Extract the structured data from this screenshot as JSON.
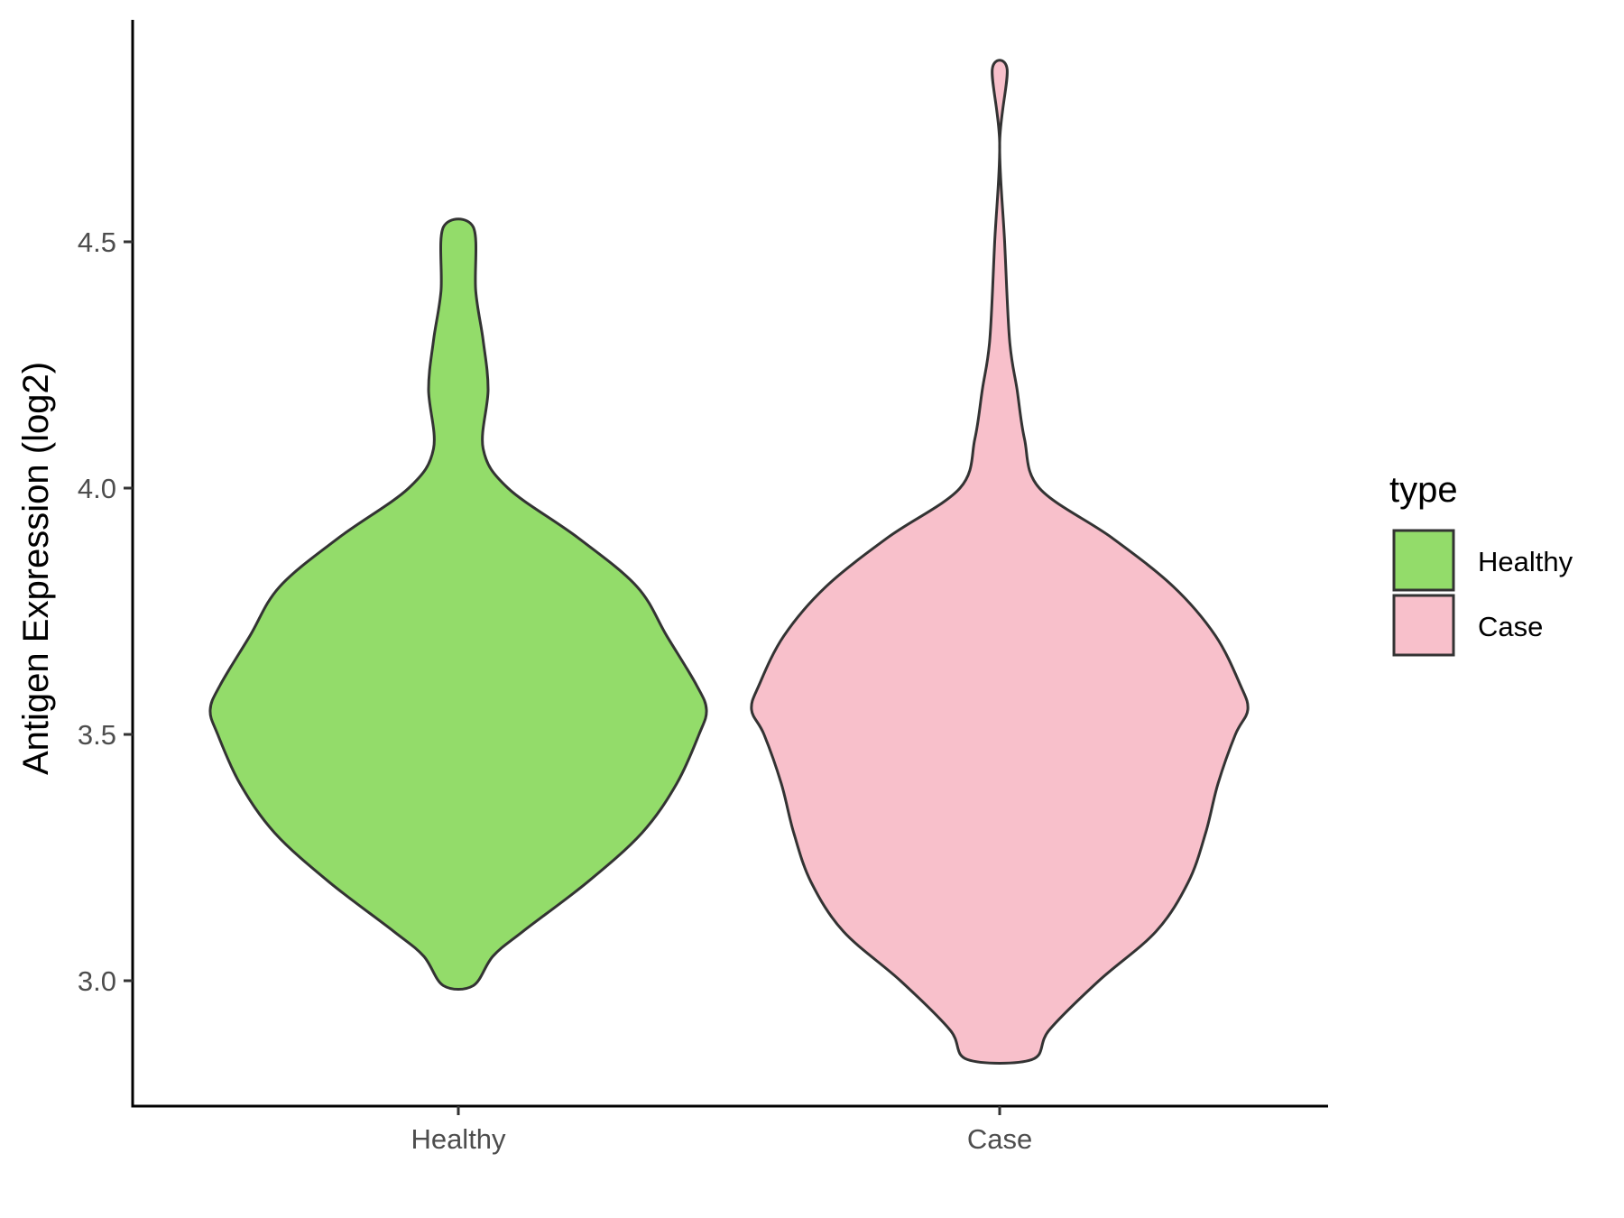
{
  "chart_data": {
    "type": "violin",
    "title": "",
    "xlabel": "",
    "ylabel": "Antigen Expression (log2)",
    "categories": [
      "Healthy",
      "Case"
    ],
    "ylim": [
      2.75,
      4.95
    ],
    "yticks": [
      3.0,
      3.5,
      4.0,
      4.5
    ],
    "ytick_labels": [
      "3.0",
      "3.5",
      "4.0",
      "4.5"
    ],
    "grid": false,
    "legend": {
      "title": "type",
      "position": "right",
      "entries": [
        "Healthy",
        "Case"
      ]
    },
    "series": [
      {
        "name": "Healthy",
        "color": "#93DC6A",
        "min": 2.99,
        "max": 4.53,
        "density_profile": [
          [
            2.99,
            0.06
          ],
          [
            3.05,
            0.14
          ],
          [
            3.1,
            0.26
          ],
          [
            3.2,
            0.52
          ],
          [
            3.3,
            0.74
          ],
          [
            3.4,
            0.88
          ],
          [
            3.5,
            0.97
          ],
          [
            3.55,
            1.0
          ],
          [
            3.6,
            0.96
          ],
          [
            3.7,
            0.84
          ],
          [
            3.8,
            0.72
          ],
          [
            3.9,
            0.48
          ],
          [
            4.0,
            0.2
          ],
          [
            4.08,
            0.1
          ],
          [
            4.2,
            0.12
          ],
          [
            4.3,
            0.1
          ],
          [
            4.4,
            0.07
          ],
          [
            4.53,
            0.06
          ]
        ]
      },
      {
        "name": "Case",
        "color": "#F8C0CB",
        "min": 2.84,
        "max": 4.85,
        "density_profile": [
          [
            2.84,
            0.13
          ],
          [
            2.9,
            0.2
          ],
          [
            3.0,
            0.4
          ],
          [
            3.1,
            0.63
          ],
          [
            3.2,
            0.76
          ],
          [
            3.3,
            0.83
          ],
          [
            3.4,
            0.88
          ],
          [
            3.5,
            0.95
          ],
          [
            3.55,
            1.0
          ],
          [
            3.6,
            0.97
          ],
          [
            3.7,
            0.87
          ],
          [
            3.8,
            0.7
          ],
          [
            3.9,
            0.45
          ],
          [
            4.0,
            0.16
          ],
          [
            4.1,
            0.1
          ],
          [
            4.2,
            0.07
          ],
          [
            4.3,
            0.04
          ],
          [
            4.5,
            0.02
          ],
          [
            4.7,
            0.0
          ],
          [
            4.85,
            0.03
          ]
        ]
      }
    ]
  }
}
